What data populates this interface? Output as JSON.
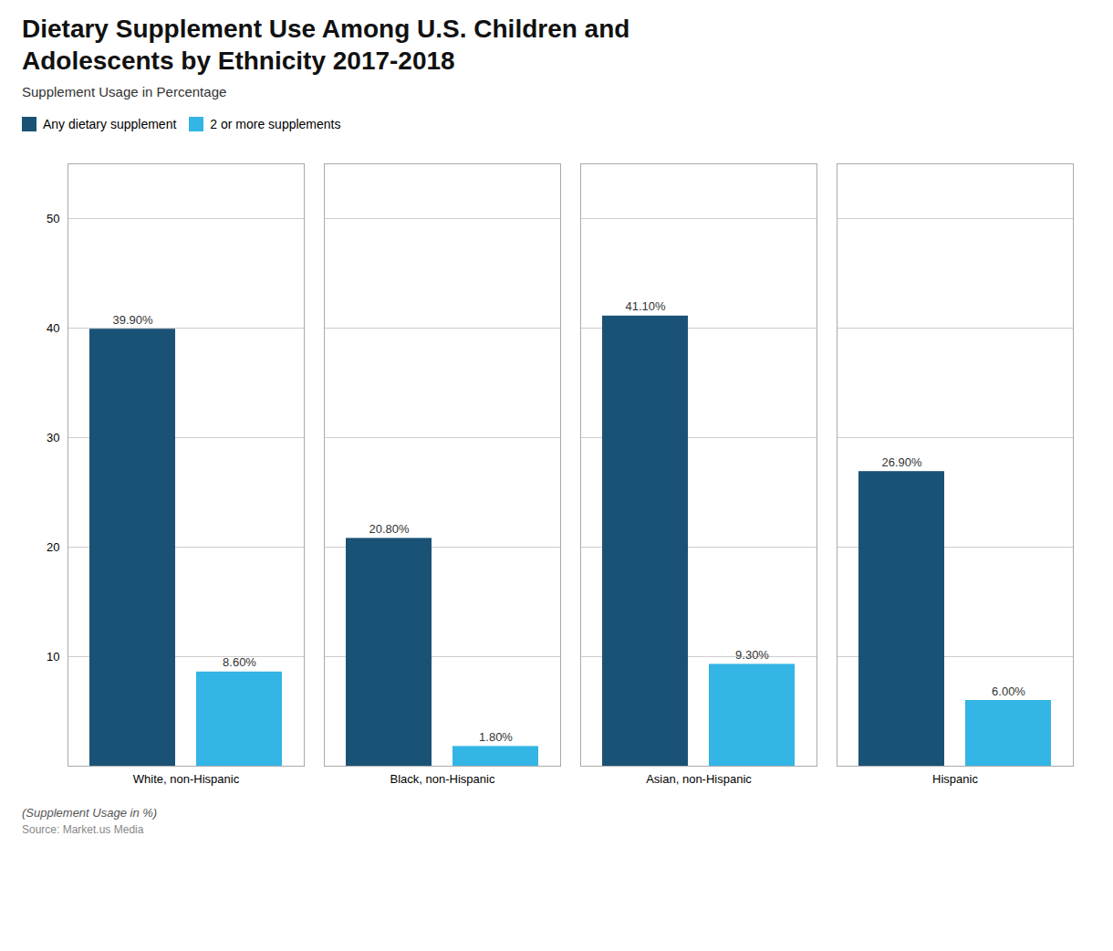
{
  "chart_data": {
    "type": "bar",
    "title": "Dietary Supplement Use Among U.S. Children and\nAdolescents by Ethnicity 2017-2018",
    "subtitle": "Supplement Usage in Percentage",
    "categories": [
      "White, non-Hispanic",
      "Black, non-Hispanic",
      "Asian, non-Hispanic",
      "Hispanic"
    ],
    "series": [
      {
        "name": "Any dietary supplement",
        "color": "#1a5276",
        "values": [
          39.9,
          20.8,
          41.1,
          26.9
        ],
        "value_labels": [
          "39.90%",
          "20.80%",
          "41.10%",
          "26.90%"
        ]
      },
      {
        "name": "2 or more supplements",
        "color": "#33b5e5",
        "values": [
          8.6,
          1.8,
          9.3,
          6.0
        ],
        "value_labels": [
          "8.60%",
          "1.80%",
          "9.30%",
          "6.00%"
        ]
      }
    ],
    "ylim": [
      0,
      55
    ],
    "yticks": [
      10,
      20,
      30,
      40,
      50
    ],
    "grid": true,
    "legend": "upper left",
    "data_labels": true,
    "annotations": [
      "(Supplement Usage in %)",
      "Source: Market.us Media"
    ]
  }
}
